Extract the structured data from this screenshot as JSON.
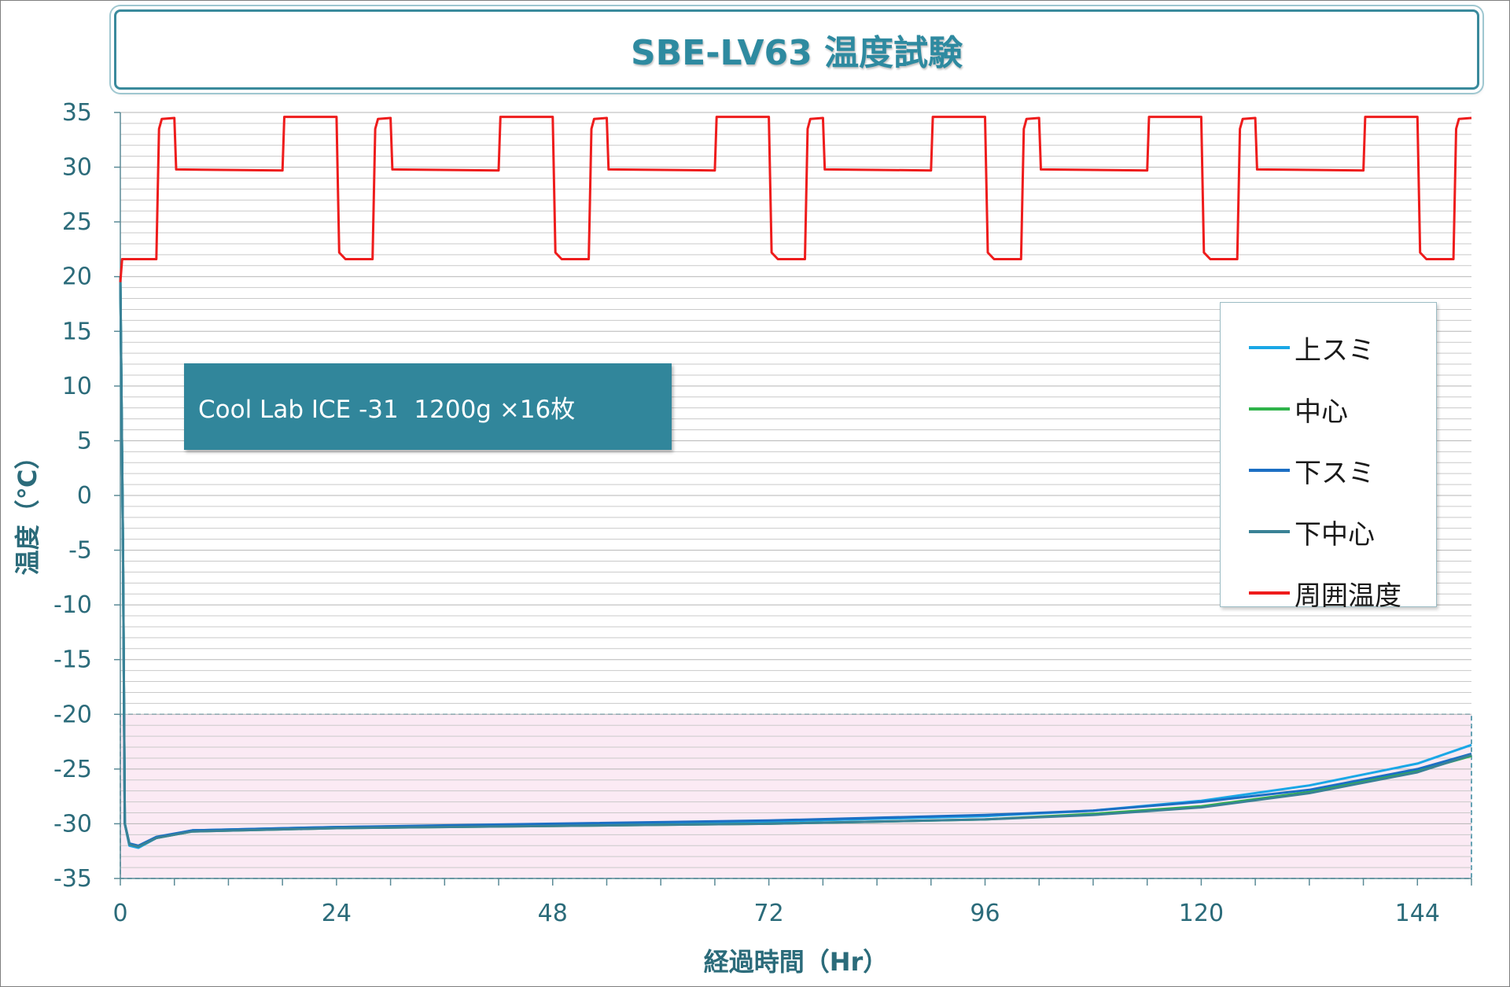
{
  "title": "SBE-LV63 温度試験",
  "note": "Cool Lab ICE -31  1200g ×16枚",
  "colors": {
    "accent": "#2e8aa0",
    "band_fill": "#fbeaf4",
    "band_border": "#31869b"
  },
  "chart_data": {
    "type": "line",
    "xlabel": "経過時間（Hr）",
    "ylabel": "温度（℃）",
    "xlim": [
      0,
      150
    ],
    "ylim": [
      -35,
      35
    ],
    "xticks": [
      "0",
      "24",
      "48",
      "72",
      "96",
      "120",
      "144"
    ],
    "yticks": [
      "35",
      "30",
      "25",
      "20",
      "15",
      "10",
      "5",
      "0",
      "-5",
      "-10",
      "-15",
      "-20",
      "-25",
      "-30",
      "-35"
    ],
    "grid": "horizontal minor lines every 1 ℃",
    "legend_position": "right",
    "highlight_band": {
      "y_from": -35,
      "y_to": -20
    },
    "series": [
      {
        "name": "上スミ",
        "color": "#1aa7e6",
        "points": [
          [
            0,
            20
          ],
          [
            0.3,
            -5
          ],
          [
            0.5,
            -30
          ],
          [
            1,
            -32
          ],
          [
            2,
            -32.2
          ],
          [
            4,
            -31.3
          ],
          [
            8,
            -30.6
          ],
          [
            24,
            -30.3
          ],
          [
            48,
            -30.1
          ],
          [
            72,
            -29.8
          ],
          [
            96,
            -29.3
          ],
          [
            108,
            -28.8
          ],
          [
            120,
            -27.9
          ],
          [
            132,
            -26.5
          ],
          [
            144,
            -24.5
          ],
          [
            150,
            -22.8
          ]
        ]
      },
      {
        "name": "中心",
        "color": "#2fb34a",
        "points": [
          [
            0,
            20
          ],
          [
            0.3,
            -5
          ],
          [
            0.5,
            -30
          ],
          [
            1,
            -31.8
          ],
          [
            2,
            -32.1
          ],
          [
            4,
            -31.3
          ],
          [
            8,
            -30.7
          ],
          [
            24,
            -30.4
          ],
          [
            48,
            -30.2
          ],
          [
            72,
            -30.0
          ],
          [
            96,
            -29.6
          ],
          [
            108,
            -29.1
          ],
          [
            120,
            -28.4
          ],
          [
            132,
            -27.1
          ],
          [
            144,
            -25.2
          ],
          [
            150,
            -23.8
          ]
        ]
      },
      {
        "name": "下スミ",
        "color": "#1c6fc4",
        "points": [
          [
            0,
            20
          ],
          [
            0.3,
            -5
          ],
          [
            0.5,
            -30
          ],
          [
            1,
            -31.8
          ],
          [
            2,
            -32.0
          ],
          [
            4,
            -31.2
          ],
          [
            8,
            -30.6
          ],
          [
            24,
            -30.3
          ],
          [
            48,
            -30.0
          ],
          [
            72,
            -29.7
          ],
          [
            96,
            -29.2
          ],
          [
            108,
            -28.8
          ],
          [
            120,
            -28.0
          ],
          [
            132,
            -26.9
          ],
          [
            144,
            -25.0
          ],
          [
            150,
            -23.6
          ]
        ]
      },
      {
        "name": "下中心",
        "color": "#3a8296",
        "points": [
          [
            0,
            20
          ],
          [
            0.3,
            -5
          ],
          [
            0.5,
            -30
          ],
          [
            1,
            -31.9
          ],
          [
            2,
            -32.1
          ],
          [
            4,
            -31.3
          ],
          [
            8,
            -30.7
          ],
          [
            24,
            -30.4
          ],
          [
            48,
            -30.2
          ],
          [
            72,
            -30.0
          ],
          [
            96,
            -29.6
          ],
          [
            108,
            -29.2
          ],
          [
            120,
            -28.5
          ],
          [
            132,
            -27.2
          ],
          [
            144,
            -25.3
          ],
          [
            150,
            -23.7
          ]
        ]
      },
      {
        "name": "周囲温度",
        "color": "#ee1c1c",
        "points": [
          [
            0,
            19.5
          ],
          [
            0.2,
            21.6
          ],
          [
            4,
            21.6
          ],
          [
            4.3,
            33.5
          ],
          [
            4.6,
            34.4
          ],
          [
            6.0,
            34.5
          ],
          [
            6.2,
            29.8
          ],
          [
            18,
            29.7
          ],
          [
            18.2,
            34.6
          ],
          [
            24,
            34.6
          ],
          [
            24.3,
            22.2
          ],
          [
            25,
            21.6
          ],
          [
            28,
            21.6
          ],
          [
            28.3,
            33.5
          ],
          [
            28.6,
            34.4
          ],
          [
            30.0,
            34.5
          ],
          [
            30.2,
            29.8
          ],
          [
            42,
            29.7
          ],
          [
            42.2,
            34.6
          ],
          [
            48,
            34.6
          ],
          [
            48.3,
            22.2
          ],
          [
            49,
            21.6
          ],
          [
            52,
            21.6
          ],
          [
            52.3,
            33.5
          ],
          [
            52.6,
            34.4
          ],
          [
            54.0,
            34.5
          ],
          [
            54.2,
            29.8
          ],
          [
            66,
            29.7
          ],
          [
            66.2,
            34.6
          ],
          [
            72,
            34.6
          ],
          [
            72.3,
            22.2
          ],
          [
            73,
            21.6
          ],
          [
            76,
            21.6
          ],
          [
            76.3,
            33.5
          ],
          [
            76.6,
            34.4
          ],
          [
            78.0,
            34.5
          ],
          [
            78.2,
            29.8
          ],
          [
            90,
            29.7
          ],
          [
            90.2,
            34.6
          ],
          [
            96,
            34.6
          ],
          [
            96.3,
            22.2
          ],
          [
            97,
            21.6
          ],
          [
            100,
            21.6
          ],
          [
            100.3,
            33.5
          ],
          [
            100.6,
            34.4
          ],
          [
            102.0,
            34.5
          ],
          [
            102.2,
            29.8
          ],
          [
            114,
            29.7
          ],
          [
            114.2,
            34.6
          ],
          [
            120,
            34.6
          ],
          [
            120.3,
            22.2
          ],
          [
            121,
            21.6
          ],
          [
            124,
            21.6
          ],
          [
            124.3,
            33.5
          ],
          [
            124.6,
            34.4
          ],
          [
            126.0,
            34.5
          ],
          [
            126.2,
            29.8
          ],
          [
            138,
            29.7
          ],
          [
            138.2,
            34.6
          ],
          [
            144,
            34.6
          ],
          [
            144.3,
            22.2
          ],
          [
            145,
            21.6
          ],
          [
            148,
            21.6
          ],
          [
            148.3,
            33.5
          ],
          [
            148.6,
            34.4
          ],
          [
            150,
            34.5
          ]
        ]
      }
    ]
  }
}
